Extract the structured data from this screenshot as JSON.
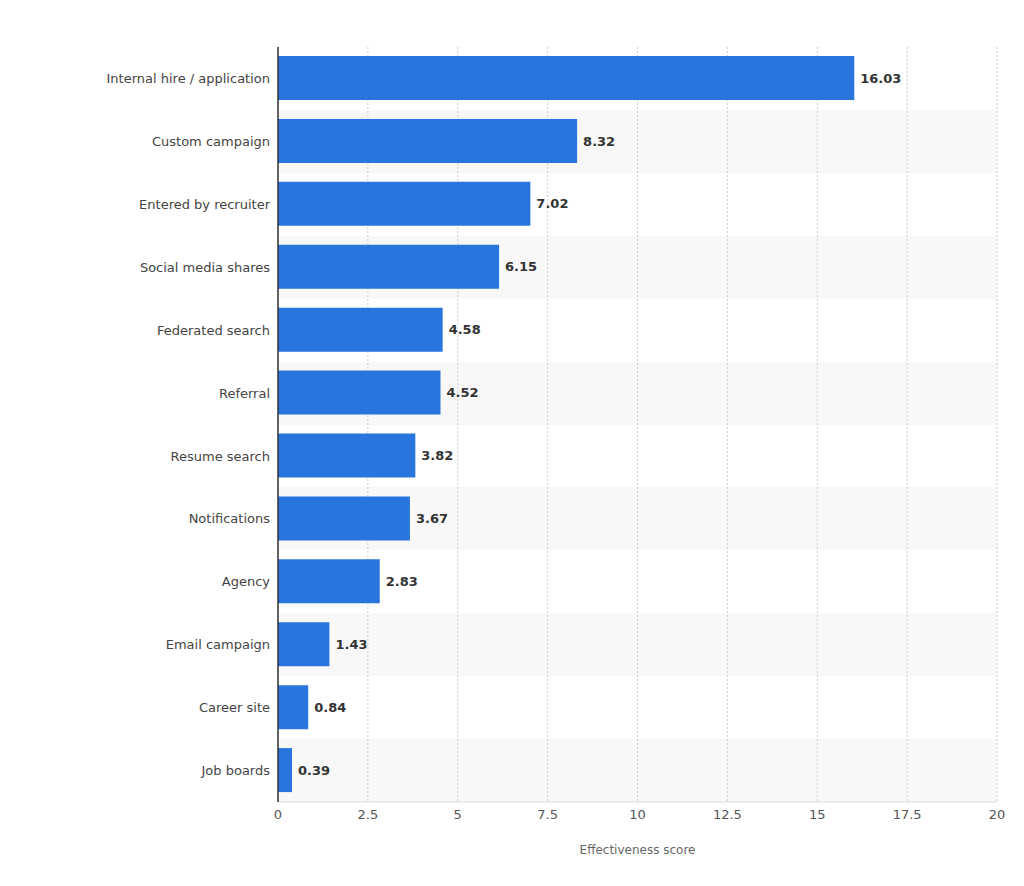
{
  "chart_data": {
    "type": "bar",
    "orientation": "horizontal",
    "categories": [
      "Internal hire / application",
      "Custom campaign",
      "Entered by recruiter",
      "Social media shares",
      "Federated search",
      "Referral",
      "Resume search",
      "Notifications",
      "Agency",
      "Email campaign",
      "Career site",
      "Job boards"
    ],
    "values": [
      16.03,
      8.32,
      7.02,
      6.15,
      4.58,
      4.52,
      3.82,
      3.67,
      2.83,
      1.43,
      0.84,
      0.39
    ],
    "color": "#2876dd",
    "xlabel": "Effectiveness score",
    "xlim": [
      0,
      20
    ],
    "xticks": [
      0,
      2.5,
      5,
      7.5,
      10,
      12.5,
      15,
      17.5,
      20
    ],
    "grid": true,
    "data_labels": true
  }
}
